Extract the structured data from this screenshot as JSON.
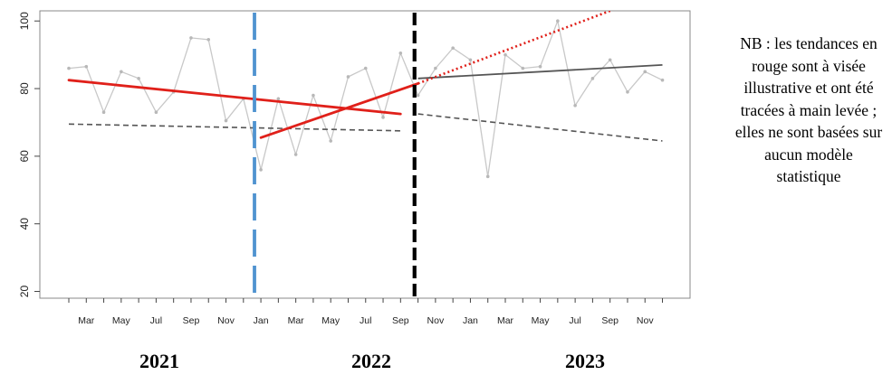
{
  "chart_data": {
    "type": "line",
    "title": "",
    "xlabel": "",
    "ylabel": "",
    "ylim": [
      18,
      103
    ],
    "y_ticks": [
      20,
      40,
      60,
      80,
      100
    ],
    "x_tick_labels": [
      "Mar",
      "May",
      "Jul",
      "Sep",
      "Nov",
      "Jan",
      "Mar",
      "May",
      "Jul",
      "Sep",
      "Nov",
      "Jan",
      "Mar",
      "May",
      "Jul",
      "Sep",
      "Nov"
    ],
    "year_labels": [
      "2021",
      "2022",
      "2023"
    ],
    "grid": false,
    "series": [
      {
        "style": "observed-line-with-points",
        "color": "#c8c8c8",
        "points": [
          [
            "2021-02",
            86
          ],
          [
            "2021-03",
            86.5
          ],
          [
            "2021-04",
            73
          ],
          [
            "2021-05",
            85
          ],
          [
            "2021-06",
            83
          ],
          [
            "2021-07",
            73
          ],
          [
            "2021-08",
            79
          ],
          [
            "2021-09",
            95
          ],
          [
            "2021-10",
            94.5
          ],
          [
            "2021-11",
            70.5
          ],
          [
            "2021-12",
            77
          ],
          [
            "2022-01",
            56
          ],
          [
            "2022-02",
            77
          ],
          [
            "2022-03",
            60.5
          ],
          [
            "2022-04",
            78
          ],
          [
            "2022-05",
            64.5
          ],
          [
            "2022-06",
            83.5
          ],
          [
            "2022-07",
            86
          ],
          [
            "2022-08",
            71.5
          ],
          [
            "2022-09",
            90.5
          ],
          [
            "2022-10",
            78
          ],
          [
            "2022-11",
            86
          ],
          [
            "2022-12",
            92
          ],
          [
            "2023-01",
            88.5
          ],
          [
            "2023-02",
            54
          ],
          [
            "2023-03",
            90
          ],
          [
            "2023-04",
            86
          ],
          [
            "2023-05",
            86.5
          ],
          [
            "2023-06",
            100
          ],
          [
            "2023-07",
            75
          ],
          [
            "2023-08",
            83
          ],
          [
            "2023-09",
            88.5
          ],
          [
            "2023-10",
            79
          ],
          [
            "2023-11",
            85
          ],
          [
            "2023-12",
            82.5
          ]
        ]
      },
      {
        "style": "dashed-trend",
        "color": "#555555",
        "points": [
          [
            "2021-02",
            69.5
          ],
          [
            "2022-09",
            67.5
          ]
        ]
      },
      {
        "style": "dashed-trend",
        "color": "#555555",
        "points": [
          [
            "2022-10",
            72.5
          ],
          [
            "2023-12",
            64.5
          ]
        ]
      },
      {
        "style": "solid-trend",
        "color": "#555555",
        "points": [
          [
            "2022-10",
            83
          ],
          [
            "2023-12",
            87
          ]
        ]
      },
      {
        "style": "red-trend",
        "color": "#e0201a",
        "points": [
          [
            "2021-02",
            82.5
          ],
          [
            "2022-09",
            72.5
          ]
        ]
      },
      {
        "style": "red-trend",
        "color": "#e0201a",
        "points": [
          [
            "2022-01",
            65.5
          ],
          [
            "2022-10",
            81.5
          ]
        ]
      },
      {
        "style": "red-dotted-projection",
        "color": "#e0201a",
        "points": [
          [
            "2022-10",
            81.5
          ],
          [
            "2023-09",
            103
          ]
        ]
      }
    ],
    "vertical_lines": [
      {
        "date": "2021-12-20",
        "color": "#4f93d0",
        "style": "long-dash"
      },
      {
        "date": "2022-09-25",
        "color": "#000000",
        "style": "dash"
      }
    ]
  },
  "note": "NB : les tendances en rouge sont à visée illustrative et ont été tracées à main levée ; elles ne sont basées sur aucun modèle statistique"
}
